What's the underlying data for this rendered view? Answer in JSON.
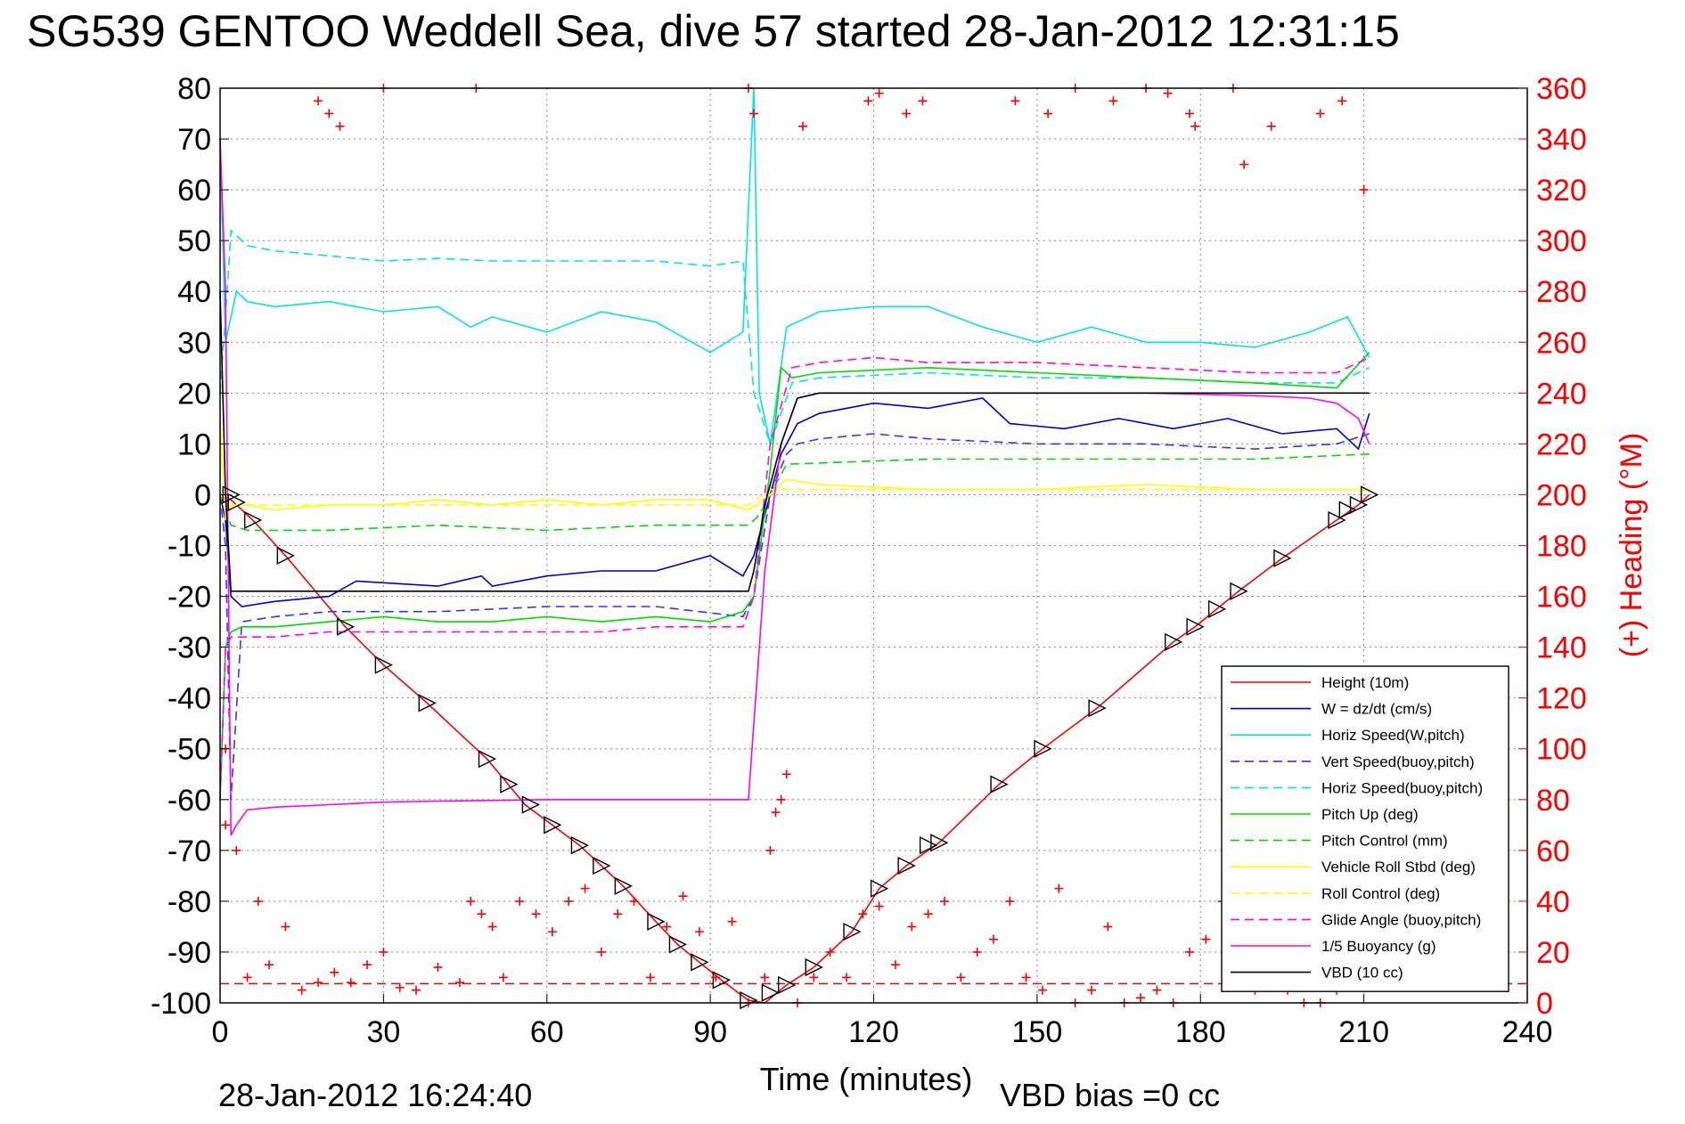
{
  "chart_data": {
    "type": "line",
    "title": "SG539 GENTOO Weddell Sea, dive 57 started 28-Jan-2012 12:31:15",
    "xlabel": "Time (minutes)",
    "ylabel_right": "(+) Heading (°M)",
    "footer_left": "28-Jan-2012 16:24:40",
    "footer_right": "VBD bias =0 cc",
    "xlim": [
      0,
      240
    ],
    "ylim": [
      -100,
      80
    ],
    "ylim_right": [
      0,
      360
    ],
    "xticks": [
      0,
      30,
      60,
      90,
      120,
      150,
      180,
      210,
      240
    ],
    "yticks": [
      -100,
      -90,
      -80,
      -70,
      -60,
      -50,
      -40,
      -30,
      -20,
      -10,
      0,
      10,
      20,
      30,
      40,
      50,
      60,
      70,
      80
    ],
    "yticks_right": [
      0,
      20,
      40,
      60,
      80,
      100,
      120,
      140,
      160,
      180,
      200,
      220,
      240,
      260,
      280,
      300,
      320,
      340,
      360
    ],
    "grid": true,
    "legend_position": "bottom-right",
    "colors": {
      "height": "#ff0000",
      "w": "#0000cc",
      "hspeed": "#00e5e5",
      "vspeed_buoy": "#3333ff",
      "hspeed_buoy": "#00e5e5",
      "pitch": "#00dd00",
      "pitch_ctrl": "#00dd00",
      "roll": "#ffff00",
      "roll_ctrl": "#ffff00",
      "glide": "#ff00ff",
      "buoyancy": "#ff00ff",
      "vbd": "#000000",
      "heading": "#ff0000"
    },
    "series": [
      {
        "name": "Height (10m)",
        "key": "height",
        "style": "solid",
        "x": [
          0,
          2,
          6,
          12,
          23,
          30,
          38,
          49,
          56,
          61,
          66,
          70,
          74,
          80,
          84,
          88,
          92,
          97,
          100,
          104,
          109,
          116,
          121,
          126,
          132,
          143,
          151,
          161,
          175,
          179,
          183,
          187,
          195,
          205,
          209,
          211
        ],
        "y": [
          0,
          -1,
          -5,
          -12,
          -26,
          -33.5,
          -41,
          -52,
          -61,
          -65,
          -69,
          -73,
          -77,
          -84,
          -88.5,
          -92,
          -95.5,
          -99.5,
          -100,
          -96.5,
          -93,
          -86,
          -77.5,
          -73,
          -68.5,
          -57,
          -50,
          -42,
          -29,
          -26,
          -22.5,
          -19,
          -12.5,
          -5,
          -2,
          0
        ]
      },
      {
        "name": "W = dz/dt (cm/s)",
        "key": "w",
        "style": "solid",
        "x": [
          0,
          1,
          2,
          4,
          10,
          20,
          25,
          40,
          48,
          50,
          60,
          70,
          80,
          90,
          96,
          98,
          101,
          103,
          106,
          110,
          120,
          130,
          140,
          145,
          155,
          165,
          175,
          185,
          195,
          205,
          209,
          211
        ],
        "y": [
          0,
          -5,
          -20,
          -22,
          -21,
          -20,
          -17,
          -18,
          -16,
          -18,
          -16,
          -15,
          -15,
          -12,
          -16,
          -12,
          0,
          8,
          14,
          16,
          18,
          17,
          19,
          14,
          13,
          15,
          13,
          15,
          12,
          13,
          9,
          16
        ]
      },
      {
        "name": "Horiz Speed(W,pitch)",
        "key": "hspeed",
        "style": "solid",
        "x": [
          0,
          1,
          3,
          5,
          10,
          20,
          30,
          40,
          46,
          50,
          60,
          70,
          80,
          90,
          96,
          98,
          99,
          101,
          104,
          110,
          120,
          130,
          140,
          150,
          160,
          170,
          180,
          190,
          200,
          207,
          211
        ],
        "y": [
          70,
          30,
          40,
          38,
          37,
          38,
          36,
          37,
          33,
          35,
          32,
          36,
          34,
          28,
          32,
          80,
          20,
          10,
          33,
          36,
          37,
          37,
          33,
          30,
          33,
          30,
          30,
          29,
          32,
          35,
          27
        ]
      },
      {
        "name": "Vert Speed(buoy,pitch)",
        "key": "vspeed_buoy",
        "style": "dashed",
        "x": [
          0,
          1,
          2,
          4,
          10,
          20,
          40,
          60,
          80,
          96,
          98,
          101,
          104,
          106,
          110,
          120,
          130,
          150,
          170,
          190,
          205,
          211
        ],
        "y": [
          0,
          -10,
          -60,
          -25,
          -24,
          -23,
          -23,
          -22,
          -22,
          -24,
          -20,
          0,
          8,
          10,
          11,
          12,
          11,
          10,
          10,
          9,
          10,
          12
        ]
      },
      {
        "name": "Horiz Speed(buoy,pitch)",
        "key": "hspeed_buoy",
        "style": "dashed",
        "x": [
          0,
          1,
          2,
          5,
          10,
          20,
          30,
          40,
          50,
          60,
          70,
          80,
          90,
          96,
          98,
          101,
          105,
          110,
          130,
          150,
          170,
          190,
          205,
          211
        ],
        "y": [
          20,
          35,
          52,
          49,
          48,
          47,
          46,
          46.5,
          46,
          46,
          46,
          46,
          45,
          46,
          20,
          10,
          22,
          23,
          24,
          23,
          23,
          22,
          22,
          25
        ]
      },
      {
        "name": "Pitch Up (deg)",
        "key": "pitch",
        "style": "solid",
        "x": [
          0,
          1,
          2,
          4,
          10,
          20,
          30,
          40,
          50,
          60,
          70,
          80,
          90,
          96,
          98,
          101,
          103,
          105,
          110,
          130,
          150,
          170,
          190,
          205,
          211
        ],
        "y": [
          -60,
          -30,
          -27,
          -26,
          -26,
          -25,
          -24,
          -25,
          -25,
          -24,
          -25,
          -24,
          -25,
          -23,
          -20,
          5,
          25,
          23,
          24,
          25,
          24,
          23,
          22,
          21,
          28
        ]
      },
      {
        "name": "Pitch Control (mm)",
        "key": "pitch_ctrl",
        "style": "dashed",
        "x": [
          0,
          1,
          2,
          5,
          20,
          40,
          60,
          80,
          97,
          99,
          101,
          104,
          130,
          150,
          170,
          190,
          211
        ],
        "y": [
          0,
          -3,
          -6,
          -7,
          -7,
          -6,
          -7,
          -6,
          -6,
          -4,
          0,
          6,
          7,
          7,
          7,
          7,
          8
        ]
      },
      {
        "name": "Vehicle Roll Stbd (deg)",
        "key": "roll",
        "style": "solid",
        "x": [
          0,
          1,
          2,
          5,
          10,
          20,
          30,
          40,
          50,
          60,
          70,
          80,
          90,
          97,
          100,
          104,
          110,
          130,
          150,
          170,
          190,
          205,
          211
        ],
        "y": [
          15,
          -5,
          -2,
          -2,
          -3,
          -2,
          -2,
          -1,
          -2,
          -1,
          -2,
          -1,
          -1,
          -3,
          -1,
          3,
          2,
          1,
          1,
          2,
          1,
          1,
          1
        ]
      },
      {
        "name": "Roll Control (deg)",
        "key": "roll_ctrl",
        "style": "dashed",
        "x": [
          0,
          2,
          10,
          30,
          50,
          70,
          90,
          97,
          101,
          110,
          130,
          150,
          170,
          190,
          211
        ],
        "y": [
          0,
          -2,
          -2,
          -2,
          -2,
          -2,
          -2,
          -2,
          1,
          1,
          1,
          1,
          1,
          1,
          1
        ]
      },
      {
        "name": "Glide Angle (buoy,pitch)",
        "key": "glide",
        "style": "dashed",
        "x": [
          0,
          1,
          2,
          5,
          10,
          20,
          30,
          40,
          50,
          60,
          70,
          80,
          90,
          96,
          98,
          101,
          105,
          110,
          120,
          130,
          150,
          170,
          190,
          205,
          211
        ],
        "y": [
          -60,
          -30,
          -28,
          -28,
          -28,
          -27,
          -27,
          -27,
          -27,
          -27,
          -27,
          -26,
          -26,
          -26,
          -20,
          10,
          25,
          26,
          27,
          26,
          26,
          25,
          24,
          24,
          27
        ]
      },
      {
        "name": "1/5 Buoyancy (g)",
        "key": "buoyancy",
        "style": "solid",
        "x": [
          0,
          1,
          2,
          3,
          5,
          10,
          20,
          30,
          40,
          60,
          80,
          97,
          100,
          103,
          106,
          110,
          130,
          150,
          170,
          190,
          200,
          205,
          209,
          211
        ],
        "y": [
          70,
          40,
          -67,
          -65,
          -62,
          -61.5,
          -61,
          -60.5,
          -60.3,
          -60,
          -60,
          -60,
          -15,
          10,
          19,
          20,
          20,
          20,
          20,
          19.5,
          19,
          18,
          15,
          10
        ]
      },
      {
        "name": "VBD (10 cc)",
        "key": "vbd",
        "style": "solid",
        "x": [
          0,
          1,
          2,
          97,
          98,
          100,
          103,
          106,
          110,
          130,
          150,
          170,
          190,
          211
        ],
        "y": [
          40,
          0,
          -19,
          -19,
          -15,
          -2,
          10,
          19,
          20,
          20,
          20,
          20,
          20,
          20
        ]
      }
    ],
    "heading_points": {
      "name": "(+) Heading (°M)",
      "marker": "+",
      "x": [
        1,
        1,
        3,
        5,
        7,
        9,
        12,
        15,
        18,
        21,
        24,
        27,
        30,
        33,
        36,
        40,
        44,
        46,
        48,
        50,
        52,
        55,
        58,
        61,
        64,
        67,
        70,
        73,
        76,
        79,
        82,
        85,
        88,
        91,
        94,
        97,
        100,
        101,
        102,
        103,
        104,
        106,
        109,
        112,
        115,
        118,
        121,
        124,
        127,
        130,
        133,
        136,
        139,
        142,
        145,
        148,
        151,
        154,
        157,
        160,
        163,
        166,
        169,
        172,
        175,
        178,
        181,
        184,
        187,
        190,
        193,
        196,
        199,
        202,
        205,
        208
      ],
      "y": [
        70,
        100,
        60,
        10,
        40,
        15,
        30,
        5,
        8,
        12,
        8,
        15,
        20,
        6,
        5,
        14,
        8,
        40,
        35,
        30,
        10,
        40,
        35,
        28,
        40,
        45,
        20,
        35,
        40,
        10,
        30,
        42,
        28,
        10,
        32,
        0,
        10,
        60,
        75,
        80,
        90,
        0,
        10,
        20,
        10,
        35,
        38,
        15,
        30,
        35,
        40,
        10,
        20,
        25,
        40,
        10,
        5,
        45,
        0,
        5,
        30,
        0,
        2,
        5,
        0,
        20,
        25,
        40,
        50,
        5,
        10,
        5,
        0,
        0,
        5,
        10
      ],
      "x_top": [
        18,
        20,
        22,
        30,
        47,
        97,
        98,
        107,
        119,
        121,
        126,
        129,
        146,
        152,
        157,
        164,
        170,
        174,
        178,
        179,
        186,
        188,
        193,
        202,
        206,
        210
      ],
      "y_top": [
        355,
        350,
        345,
        360,
        360,
        360,
        350,
        345,
        355,
        358,
        350,
        355,
        355,
        350,
        360,
        355,
        360,
        358,
        350,
        345,
        360,
        330,
        345,
        350,
        355,
        320
      ]
    },
    "dive_markers": {
      "x": [
        2,
        3,
        6,
        12,
        23,
        30,
        38,
        49,
        53,
        57,
        61,
        66,
        70,
        74,
        80,
        84,
        88,
        92,
        97,
        101,
        104,
        109,
        116,
        121,
        126,
        130,
        132,
        143,
        151,
        161,
        175,
        179,
        183,
        187,
        195,
        205,
        207,
        209,
        211
      ],
      "y": [
        0,
        -1.5,
        -5,
        -12,
        -26,
        -33.5,
        -41,
        -52,
        -57,
        -61,
        -65,
        -69,
        -73,
        -77,
        -84,
        -88.5,
        -92,
        -95.5,
        -99.5,
        -98,
        -96.5,
        -93,
        -86,
        -77.5,
        -73,
        -69,
        -68.5,
        -57,
        -50,
        -42,
        -29,
        -26,
        -22.5,
        -19,
        -12.5,
        -5,
        -3,
        -2,
        0
      ]
    },
    "reference_line": {
      "y": -96.2,
      "style": "dashed",
      "color": "#ff0000"
    }
  }
}
